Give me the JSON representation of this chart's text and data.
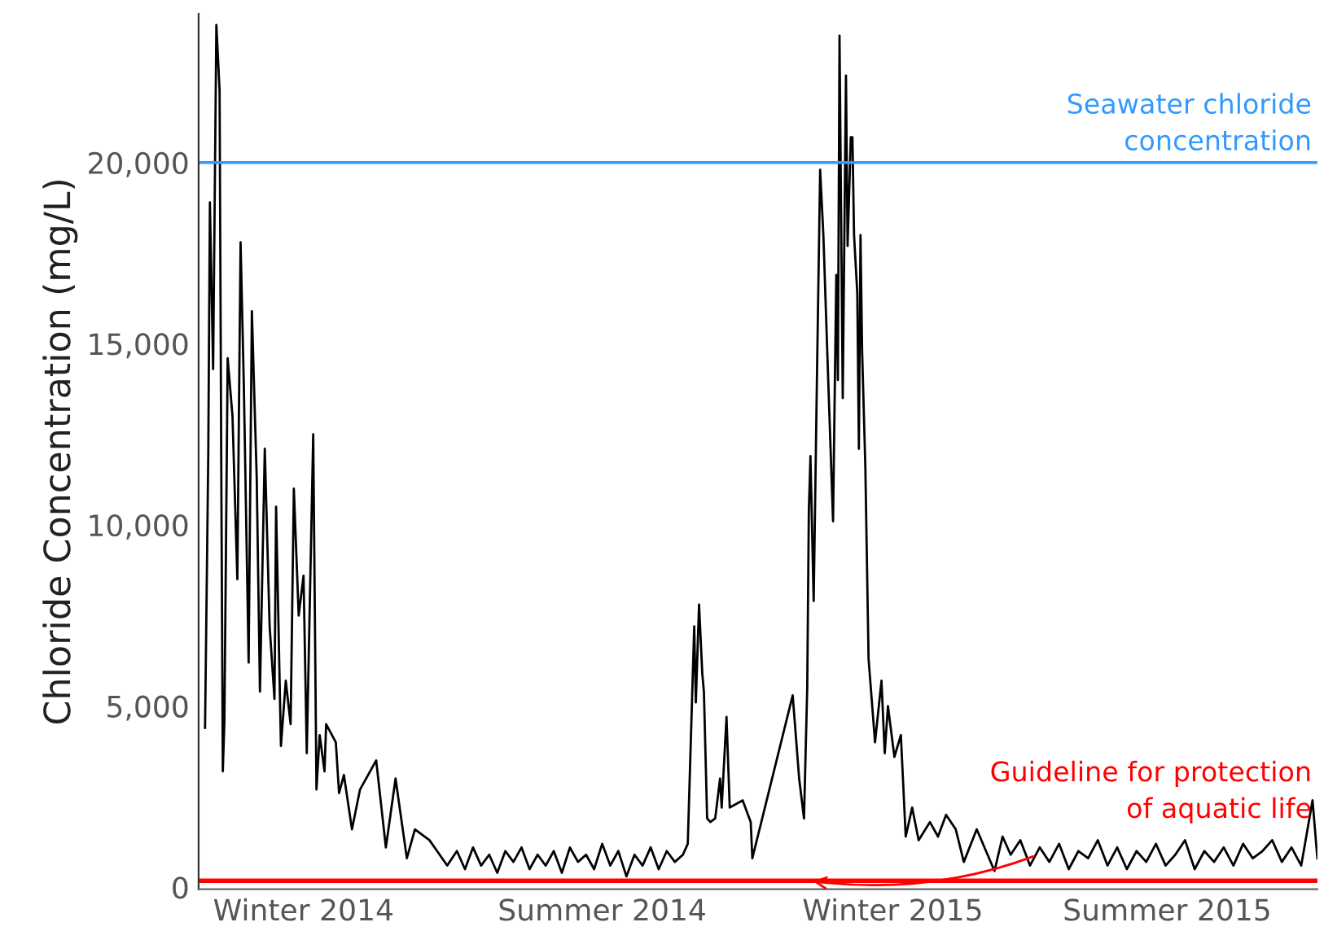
{
  "chart_data": {
    "type": "line",
    "ylabel": "Chloride Concentration (mg/L)",
    "xlim": [
      "2013-10-28",
      "2015-09-21"
    ],
    "ylim": [
      -50,
      24100
    ],
    "xticks": [
      {
        "value": "2014-01-01",
        "label": "Winter 2014"
      },
      {
        "value": "2014-07-05",
        "label": "Summer 2014"
      },
      {
        "value": "2015-01-01",
        "label": "Winter 2015"
      },
      {
        "value": "2015-06-20",
        "label": "Summer 2015"
      }
    ],
    "yticks": [
      {
        "value": 0,
        "label": "0"
      },
      {
        "value": 5000,
        "label": "5,000"
      },
      {
        "value": 10000,
        "label": "10,000"
      },
      {
        "value": 15000,
        "label": "15,000"
      },
      {
        "value": 20000,
        "label": "20,000"
      }
    ],
    "grid": false,
    "legend": false,
    "marker": "none",
    "line_style": "solid",
    "ref_lines": [
      {
        "axis": "y",
        "value": 20000,
        "label": "Seawater chloride\nconcentration",
        "color": "#3399ff"
      },
      {
        "axis": "y",
        "value": 180,
        "label": "Guideline for protection\nof aquatic life",
        "color": "#ff0000"
      }
    ],
    "series": [
      {
        "color": "#000000",
        "x": [
          "2013-11-01",
          "2013-11-03",
          "2013-11-04",
          "2013-11-06",
          "2013-11-08",
          "2013-11-10",
          "2013-11-11",
          "2013-11-12",
          "2013-11-13",
          "2013-11-15",
          "2013-11-18",
          "2013-11-21",
          "2013-11-23",
          "2013-11-25",
          "2013-11-28",
          "2013-11-30",
          "2013-12-03",
          "2013-12-05",
          "2013-12-08",
          "2013-12-11",
          "2013-12-14",
          "2013-12-15",
          "2013-12-18",
          "2013-12-21",
          "2013-12-24",
          "2013-12-26",
          "2013-12-29",
          "2014-01-01",
          "2014-01-03",
          "2014-01-07",
          "2014-01-09",
          "2014-01-11",
          "2014-01-14",
          "2014-01-15",
          "2014-01-21",
          "2014-01-23",
          "2014-01-26",
          "2014-01-31",
          "2014-02-05",
          "2014-02-15",
          "2014-02-21",
          "2014-02-27",
          "2014-03-06",
          "2014-03-11",
          "2014-03-20",
          "2014-03-31",
          "2014-04-06",
          "2014-04-11",
          "2014-04-16",
          "2014-04-21",
          "2014-04-26",
          "2014-05-01",
          "2014-05-06",
          "2014-05-11",
          "2014-05-16",
          "2014-05-21",
          "2014-05-26",
          "2014-05-31",
          "2014-06-05",
          "2014-06-10",
          "2014-06-15",
          "2014-06-20",
          "2014-06-25",
          "2014-06-30",
          "2014-07-05",
          "2014-07-10",
          "2014-07-15",
          "2014-07-20",
          "2014-07-25",
          "2014-07-30",
          "2014-08-04",
          "2014-08-09",
          "2014-08-14",
          "2014-08-19",
          "2014-08-24",
          "2014-08-27",
          "2014-08-31",
          "2014-09-01",
          "2014-09-03",
          "2014-09-05",
          "2014-09-06",
          "2014-09-08",
          "2014-09-10",
          "2014-09-13",
          "2014-09-16",
          "2014-09-17",
          "2014-09-20",
          "2014-09-22",
          "2014-09-30",
          "2014-10-05",
          "2014-10-06",
          "2014-10-31",
          "2014-11-04",
          "2014-11-07",
          "2014-11-09",
          "2014-11-10",
          "2014-11-11",
          "2014-11-13",
          "2014-11-15",
          "2014-11-17",
          "2014-11-19",
          "2014-11-22",
          "2014-11-25",
          "2014-11-27",
          "2014-11-28",
          "2014-11-29",
          "2014-12-01",
          "2014-12-03",
          "2014-12-04",
          "2014-12-06",
          "2014-12-07",
          "2014-12-08",
          "2014-12-10",
          "2014-12-11",
          "2014-12-12",
          "2014-12-13",
          "2014-12-15",
          "2014-12-17",
          "2014-12-21",
          "2014-12-25",
          "2014-12-27",
          "2014-12-29",
          "2015-01-02",
          "2015-01-06",
          "2015-01-09",
          "2015-01-13",
          "2015-01-17",
          "2015-01-24",
          "2015-01-29",
          "2015-02-03",
          "2015-02-09",
          "2015-02-14",
          "2015-02-22",
          "2015-03-05",
          "2015-03-10",
          "2015-03-15",
          "2015-03-21",
          "2015-03-27",
          "2015-04-02",
          "2015-04-08",
          "2015-04-14",
          "2015-04-20",
          "2015-04-26",
          "2015-05-02",
          "2015-05-08",
          "2015-05-14",
          "2015-05-20",
          "2015-05-26",
          "2015-06-01",
          "2015-06-07",
          "2015-06-13",
          "2015-06-19",
          "2015-06-25",
          "2015-07-01",
          "2015-07-07",
          "2015-07-13",
          "2015-07-19",
          "2015-07-25",
          "2015-07-31",
          "2015-08-06",
          "2015-08-12",
          "2015-08-18",
          "2015-08-24",
          "2015-08-30",
          "2015-09-05",
          "2015-09-11",
          "2015-09-18",
          "2015-09-21"
        ],
        "values": [
          4400,
          12000,
          18900,
          14300,
          23800,
          22000,
          12000,
          3200,
          4600,
          14600,
          13000,
          8500,
          17800,
          13900,
          6200,
          15900,
          11300,
          5400,
          12100,
          7200,
          5200,
          10500,
          3900,
          5700,
          4500,
          11000,
          7500,
          8600,
          3700,
          12500,
          2700,
          4200,
          3200,
          4500,
          4000,
          2600,
          3100,
          1600,
          2700,
          3500,
          1100,
          3000,
          800,
          1600,
          1300,
          600,
          1000,
          500,
          1100,
          600,
          900,
          400,
          1000,
          700,
          1100,
          500,
          900,
          600,
          1000,
          400,
          1100,
          700,
          900,
          500,
          1200,
          600,
          1000,
          300,
          900,
          600,
          1100,
          500,
          1000,
          700,
          900,
          1200,
          7200,
          5100,
          7800,
          5900,
          5400,
          1900,
          1800,
          1900,
          3000,
          2200,
          4700,
          2200,
          2400,
          1800,
          800,
          5300,
          3000,
          1900,
          5500,
          10400,
          11900,
          7900,
          14000,
          19800,
          18000,
          14000,
          10100,
          16900,
          14000,
          23500,
          13500,
          22400,
          17700,
          20700,
          20700,
          18000,
          16400,
          12100,
          18000,
          14800,
          11600,
          6300,
          4000,
          5700,
          3700,
          5000,
          3600,
          4200,
          1400,
          2200,
          1300,
          1800,
          1400,
          2000,
          1600,
          700,
          1600,
          450,
          1400,
          900,
          1300,
          600,
          1100,
          700,
          1200,
          500,
          1000,
          800,
          1300,
          600,
          1100,
          500,
          1000,
          700,
          1200,
          600,
          900,
          1300,
          500,
          1000,
          700,
          1100,
          600,
          1200,
          800,
          1000,
          1300,
          700,
          1100,
          600,
          2400,
          800
        ]
      }
    ]
  }
}
